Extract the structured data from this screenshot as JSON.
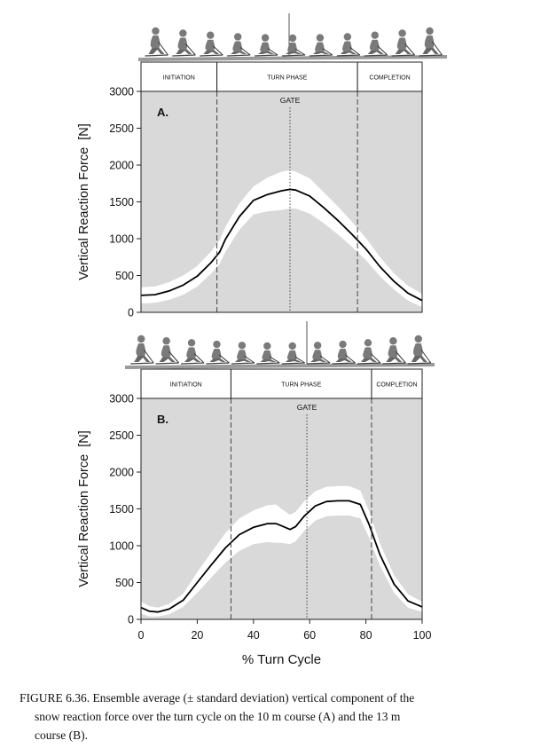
{
  "chart_data": [
    {
      "type": "line",
      "panel_label": "A.",
      "ylabel": "Vertical Reaction Force  [N]",
      "xlabel": "",
      "xlim": [
        0,
        100
      ],
      "ylim": [
        0,
        3000
      ],
      "yticks": [
        0,
        500,
        1000,
        1500,
        2000,
        2500,
        3000
      ],
      "phases": [
        {
          "label": "INITIATION",
          "start": 0,
          "end": 27
        },
        {
          "label": "TURN PHASE",
          "start": 27,
          "end": 77
        },
        {
          "label": "COMPLETION",
          "start": 77,
          "end": 100
        }
      ],
      "gate": {
        "label": "GATE",
        "x": 53
      },
      "series": [
        {
          "x": [
            0,
            5,
            10,
            15,
            20,
            25,
            28,
            30,
            35,
            40,
            45,
            50,
            53,
            55,
            60,
            65,
            70,
            75,
            80,
            85,
            90,
            95,
            100
          ],
          "mean": [
            230,
            240,
            290,
            370,
            490,
            680,
            820,
            990,
            1300,
            1520,
            1600,
            1650,
            1670,
            1660,
            1580,
            1420,
            1250,
            1060,
            860,
            620,
            420,
            260,
            160
          ],
          "sd": [
            110,
            110,
            120,
            130,
            140,
            150,
            160,
            170,
            180,
            190,
            230,
            260,
            260,
            250,
            240,
            210,
            190,
            170,
            150,
            130,
            110,
            100,
            90
          ]
        }
      ]
    },
    {
      "type": "line",
      "panel_label": "B.",
      "ylabel": "Vertical Reaction Force  [N]",
      "xlabel": "% Turn Cycle",
      "xlim": [
        0,
        100
      ],
      "ylim": [
        0,
        3000
      ],
      "xticks": [
        0,
        20,
        40,
        60,
        80,
        100
      ],
      "yticks": [
        0,
        500,
        1000,
        1500,
        2000,
        2500,
        3000
      ],
      "phases": [
        {
          "label": "INITIATION",
          "start": 0,
          "end": 32
        },
        {
          "label": "TURN PHASE",
          "start": 32,
          "end": 82
        },
        {
          "label": "COMPLETION",
          "start": 82,
          "end": 100
        }
      ],
      "gate": {
        "label": "GATE",
        "x": 59
      },
      "series": [
        {
          "x": [
            0,
            3,
            6,
            10,
            15,
            20,
            25,
            30,
            35,
            40,
            45,
            48,
            50,
            53,
            55,
            58,
            62,
            66,
            70,
            74,
            78,
            81,
            85,
            90,
            95,
            100
          ],
          "mean": [
            160,
            110,
            100,
            140,
            260,
            500,
            740,
            970,
            1150,
            1250,
            1300,
            1300,
            1270,
            1220,
            1260,
            1400,
            1540,
            1600,
            1610,
            1610,
            1560,
            1300,
            880,
            480,
            250,
            170
          ],
          "sd": [
            80,
            70,
            60,
            70,
            90,
            140,
            170,
            200,
            220,
            230,
            250,
            260,
            230,
            200,
            200,
            200,
            200,
            200,
            200,
            200,
            190,
            180,
            150,
            120,
            90,
            70
          ]
        }
      ]
    }
  ],
  "caption": {
    "line1": "FIGURE 6.36.  Ensemble average (± standard deviation) vertical component of the",
    "line2": "snow reaction force over the turn cycle on the 10 m course (A) and the 13 m",
    "line3": "course (B)."
  },
  "colors": {
    "plot_bg": "#d9d9d9",
    "band": "#ffffff",
    "line": "#000000",
    "axis": "#222222",
    "skier": "#7a7a7a"
  }
}
